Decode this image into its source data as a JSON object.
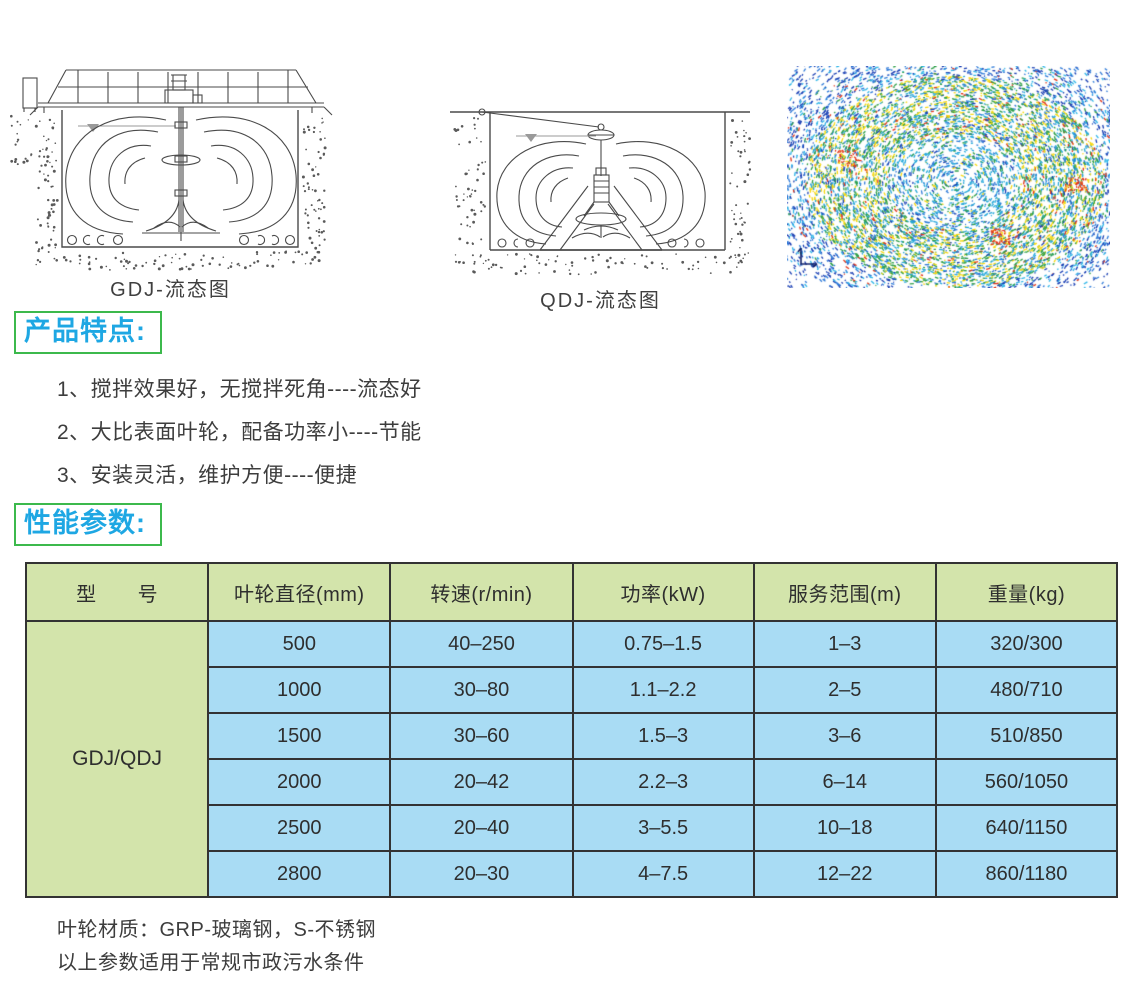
{
  "figures": {
    "gdj": {
      "caption": "GDJ-流态图"
    },
    "qdj": {
      "caption": "QDJ-流态图"
    }
  },
  "sections": {
    "features": {
      "title": "产品特点:",
      "items": [
        "1、搅拌效果好，无搅拌死角----流态好",
        "2、大比表面叶轮，配备功率小----节能",
        "3、安装灵活，维护方便----便捷"
      ]
    },
    "parameters": {
      "title": "性能参数:"
    }
  },
  "table": {
    "headers": [
      "型　　号",
      "叶轮直径(mm)",
      "转速(r/min)",
      "功率(kW)",
      "服务范围(m)",
      "重量(kg)"
    ],
    "model": "GDJ/QDJ",
    "rows": [
      [
        "500",
        "40–250",
        "0.75–1.5",
        "1–3",
        "320/300"
      ],
      [
        "1000",
        "30–80",
        "1.1–2.2",
        "2–5",
        "480/710"
      ],
      [
        "1500",
        "30–60",
        "1.5–3",
        "3–6",
        "510/850"
      ],
      [
        "2000",
        "20–42",
        "2.2–3",
        "6–14",
        "560/1050"
      ],
      [
        "2500",
        "20–40",
        "3–5.5",
        "10–18",
        "640/1150"
      ],
      [
        "2800",
        "20–30",
        "4–7.5",
        "12–22",
        "860/1180"
      ]
    ]
  },
  "notes": [
    "叶轮材质：GRP-玻璃钢，S-不锈钢",
    "以上参数适用于常规市政污水条件"
  ],
  "colors": {
    "accent_blue": "#1ea7e3",
    "accent_green": "#3cb94c",
    "table_header_green": "#d3e4ab",
    "table_cell_blue": "#a9dcf4",
    "table_border": "#333333"
  }
}
